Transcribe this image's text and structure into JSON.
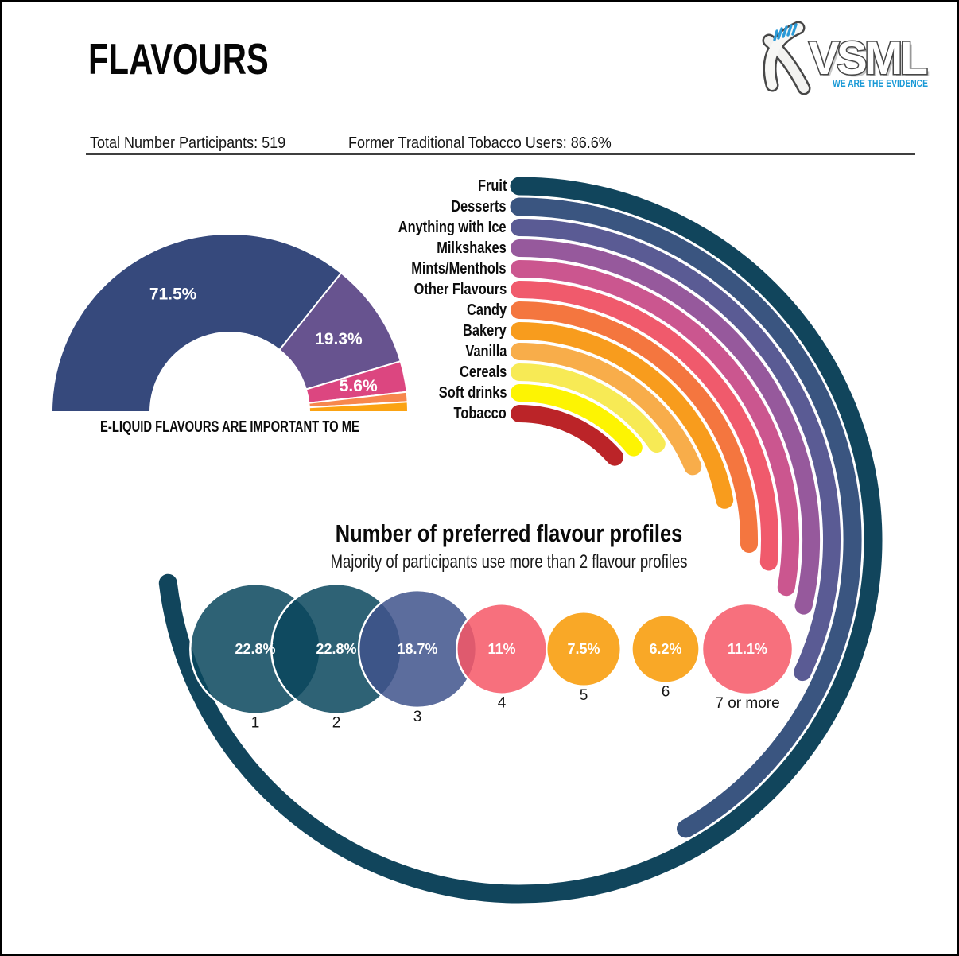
{
  "page": {
    "title": "FLAVOURS"
  },
  "logo": {
    "brand": "VSML",
    "tagline": "WE ARE THE EVIDENCE",
    "tagline_color": "#1b9ad6"
  },
  "stats": {
    "participants": "Total Number Participants: 519",
    "tobacco_users": "Former Traditional Tobacco Users: 86.6%"
  },
  "chart_data": [
    {
      "id": "flavour-importance-donut",
      "type": "pie",
      "style": "semi-donut-180deg",
      "caption": "E-LIQUID FLAVOURS ARE IMPORTANT TO ME",
      "legend_position": "none",
      "slices": [
        {
          "label": "71.5%",
          "value": 71.5,
          "color": "#36497c"
        },
        {
          "label": "19.3%",
          "value": 19.3,
          "color": "#67538f"
        },
        {
          "label": "5.6%",
          "value": 5.6,
          "color": "#dc4680"
        },
        {
          "label": "",
          "value": 1.8,
          "color": "#f7874d",
          "estimated": true
        },
        {
          "label": "",
          "value": 1.8,
          "color": "#fba313",
          "estimated": true
        }
      ]
    },
    {
      "id": "preferred-flavours-radial",
      "type": "bar",
      "style": "radial-arcs-clockwise-from-top",
      "note": "arc values unlabeled in source; sweep degrees estimated from pixels (360deg = full circle)",
      "series": [
        {
          "label": "Fruit",
          "sweep_deg": 263,
          "color": "#11455c"
        },
        {
          "label": "Desserts",
          "sweep_deg": 150,
          "color": "#3a5580"
        },
        {
          "label": "Anything with Ice",
          "sweep_deg": 115,
          "color": "#5a5b94"
        },
        {
          "label": "Milkshakes",
          "sweep_deg": 103,
          "color": "#96599c"
        },
        {
          "label": "Mints/Menthols",
          "sweep_deg": 100,
          "color": "#cb568f"
        },
        {
          "label": "Other Flavours",
          "sweep_deg": 95,
          "color": "#f05a6c"
        },
        {
          "label": "Candy",
          "sweep_deg": 91,
          "color": "#f4763f"
        },
        {
          "label": "Bakery",
          "sweep_deg": 79,
          "color": "#f89c1d"
        },
        {
          "label": "Vanilla",
          "sweep_deg": 67,
          "color": "#f8ad4a"
        },
        {
          "label": "Cereals",
          "sweep_deg": 55,
          "color": "#f7ea55"
        },
        {
          "label": "Soft drinks",
          "sweep_deg": 51,
          "color": "#fdf402"
        },
        {
          "label": "Tobacco",
          "sweep_deg": 49,
          "color": "#bb2428"
        }
      ]
    },
    {
      "id": "preferred-profile-count-bubbles",
      "type": "scatter",
      "style": "proportional-bubbles",
      "title": "Number of preferred flavour profiles",
      "subtitle": "Majority of participants use more than 2 flavour profiles",
      "points": [
        {
          "category": "1",
          "value": 22.8,
          "label": "22.8%",
          "color": "#2e6375"
        },
        {
          "category": "2",
          "value": 22.8,
          "label": "22.8%",
          "color": "#2e6375"
        },
        {
          "category": "3",
          "value": 18.7,
          "label": "18.7%",
          "color": "#5c6e9d"
        },
        {
          "category": "4",
          "value": 11,
          "label": "11%",
          "color": "#f7707d"
        },
        {
          "category": "5",
          "value": 7.5,
          "label": "7.5%",
          "color": "#f9a827"
        },
        {
          "category": "6",
          "value": 6.2,
          "label": "6.2%",
          "color": "#f9a827"
        },
        {
          "category": "7 or more",
          "value": 11.1,
          "label": "11.1%",
          "color": "#f7707d"
        }
      ]
    }
  ]
}
